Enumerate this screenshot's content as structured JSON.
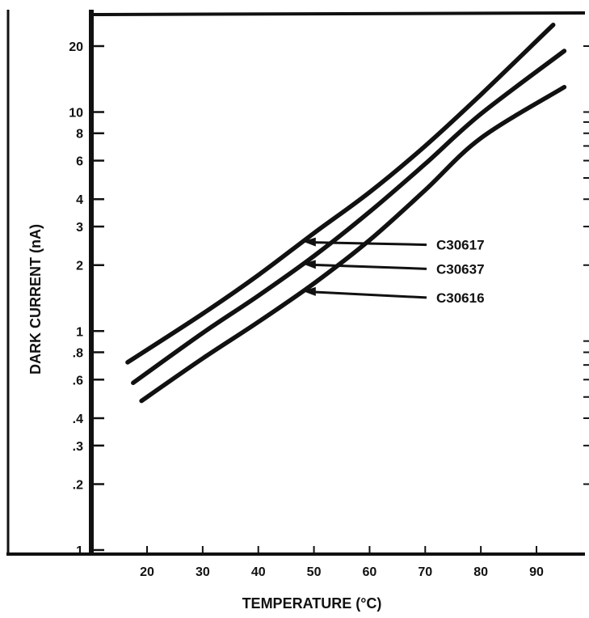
{
  "chart_data": {
    "type": "line",
    "title": "",
    "xlabel": "TEMPERATURE (°C)",
    "ylabel": "DARK CURRENT (nA)",
    "x_ticks": [
      20,
      30,
      40,
      50,
      60,
      70,
      80,
      90
    ],
    "y_ticks": [
      {
        "value": 0.1,
        "label": ".1"
      },
      {
        "value": 0.2,
        "label": ".2"
      },
      {
        "value": 0.3,
        "label": ".3"
      },
      {
        "value": 0.4,
        "label": ".4"
      },
      {
        "value": 0.6,
        "label": ".6"
      },
      {
        "value": 0.8,
        "label": ".8"
      },
      {
        "value": 1,
        "label": "1"
      },
      {
        "value": 2,
        "label": "2"
      },
      {
        "value": 3,
        "label": "3"
      },
      {
        "value": 4,
        "label": "4"
      },
      {
        "value": 6,
        "label": "6"
      },
      {
        "value": 8,
        "label": "8"
      },
      {
        "value": 10,
        "label": "10"
      },
      {
        "value": 20,
        "label": "20"
      }
    ],
    "xlim": [
      10,
      98
    ],
    "ylim": [
      0.1,
      30
    ],
    "y_scale": "log",
    "grid": false,
    "legend": "none",
    "series": [
      {
        "name": "C30617",
        "x": [
          16.5,
          30,
          40,
          50,
          60,
          70,
          80,
          93
        ],
        "y": [
          0.72,
          1.2,
          1.8,
          2.8,
          4.3,
          7.0,
          12.0,
          25.0
        ]
      },
      {
        "name": "C30637",
        "x": [
          17.5,
          30,
          40,
          50,
          60,
          70,
          80,
          95
        ],
        "y": [
          0.58,
          0.98,
          1.45,
          2.2,
          3.5,
          5.8,
          9.8,
          19.0
        ]
      },
      {
        "name": "C30616",
        "x": [
          19,
          30,
          40,
          50,
          60,
          70,
          80,
          95
        ],
        "y": [
          0.48,
          0.75,
          1.1,
          1.65,
          2.6,
          4.4,
          7.6,
          13.0
        ]
      }
    ],
    "line_color": "#111111"
  }
}
